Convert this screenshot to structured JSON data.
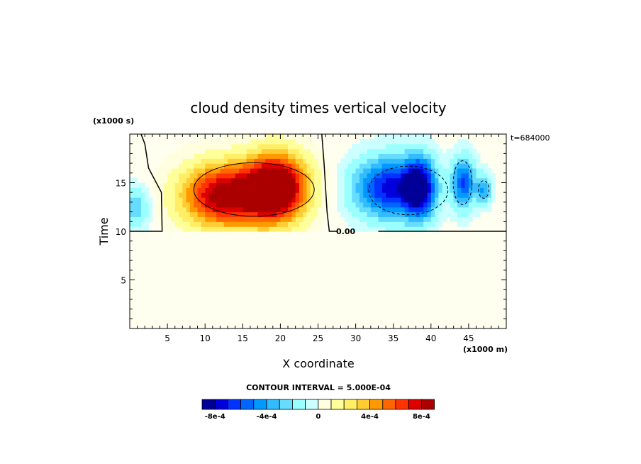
{
  "chart_data": {
    "type": "heatmap",
    "title": "cloud density times vertical velocity",
    "xlabel": "X coordinate",
    "ylabel": "Time",
    "x_unit_label": "(x1000 m)",
    "y_unit_label": "(x1000 s)",
    "time_label": "t=684000",
    "xlim": [
      0,
      50
    ],
    "ylim": [
      0,
      20
    ],
    "x_ticks": [
      5,
      10,
      15,
      20,
      25,
      30,
      35,
      40,
      45
    ],
    "y_ticks": [
      5,
      10,
      15
    ],
    "zero_contour_label": "0.00",
    "contour_interval_label": "CONTOUR INTERVAL = 5.000E-04",
    "colorbar": {
      "levels": [
        "-8e-4",
        "-4e-4",
        "0",
        "4e-4",
        "8e-4"
      ],
      "colors": [
        "#000099",
        "#0000dd",
        "#0033ff",
        "#0066ff",
        "#0099ff",
        "#33bbff",
        "#66ddff",
        "#99ffff",
        "#ccffff",
        "#ffffe0",
        "#ffff99",
        "#ffee66",
        "#ffcc33",
        "#ff9900",
        "#ff6600",
        "#ff3300",
        "#dd0000",
        "#aa0000"
      ]
    },
    "features": [
      {
        "name": "updraft-left",
        "x": 12.5,
        "y": 13.7,
        "sx": 5.5,
        "sy": 3.2,
        "amp": 0.0009
      },
      {
        "name": "updraft-right",
        "x": 19.5,
        "y": 14.5,
        "sx": 4.0,
        "sy": 3.4,
        "amp": 0.0011
      },
      {
        "name": "downdraft-1",
        "x": 34.5,
        "y": 14.5,
        "sx": 4.5,
        "sy": 3.0,
        "amp": -0.00075
      },
      {
        "name": "downdraft-2",
        "x": 38.5,
        "y": 14.5,
        "sx": 2.0,
        "sy": 3.0,
        "amp": -0.0008
      },
      {
        "name": "downdraft-3",
        "x": 44.3,
        "y": 15.0,
        "sx": 1.5,
        "sy": 2.5,
        "amp": -0.0006
      },
      {
        "name": "downdraft-4",
        "x": 47.0,
        "y": 14.3,
        "sx": 1.0,
        "sy": 1.5,
        "amp": -0.0004
      },
      {
        "name": "downdraft-edge",
        "x": 0.5,
        "y": 12.5,
        "sx": 2.0,
        "sy": 2.0,
        "amp": -0.0003
      }
    ]
  }
}
